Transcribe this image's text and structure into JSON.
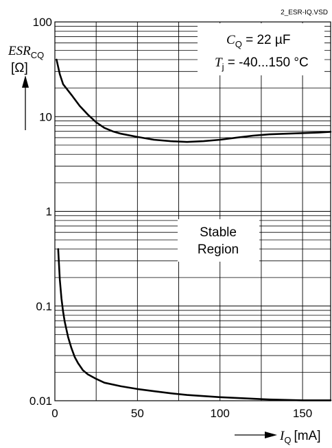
{
  "file_name": "2_ESR-IQ.VSD",
  "chart_data": {
    "type": "line",
    "log_y": true,
    "xlim": [
      0,
      167
    ],
    "ylim": [
      0.01,
      100
    ],
    "x_ticks": [
      "0",
      "50",
      "100",
      "150"
    ],
    "y_ticks": [
      "0.01",
      "0.1",
      "1",
      "10",
      "100"
    ],
    "grid": true,
    "ylabel": {
      "main": "ESR",
      "sub": "CQ",
      "unit": "[Ω]"
    },
    "xlabel": {
      "main": "I",
      "sub": "Q",
      "unit": "[mA]"
    },
    "annotation": {
      "cq_label": "C",
      "cq_sub": "Q",
      "cq_value": " = 22 µF",
      "tj_label": "T",
      "tj_sub": "j",
      "tj_value": " = -40...150 °C"
    },
    "region_label": [
      "Stable",
      "Region"
    ],
    "series": [
      {
        "role": "upper-boundary",
        "x": [
          1,
          3,
          5,
          10,
          15,
          20,
          25,
          30,
          35,
          40,
          50,
          60,
          70,
          80,
          90,
          100,
          110,
          120,
          130,
          140,
          150,
          160,
          167
        ],
        "y": [
          40,
          28,
          22,
          17,
          13,
          10.5,
          8.7,
          7.6,
          7.0,
          6.6,
          6.1,
          5.7,
          5.5,
          5.4,
          5.5,
          5.7,
          6.0,
          6.3,
          6.5,
          6.6,
          6.7,
          6.8,
          6.9
        ]
      },
      {
        "role": "lower-boundary",
        "x": [
          2,
          3,
          4,
          5,
          6,
          8,
          10,
          12,
          14,
          17,
          20,
          25,
          30,
          40,
          50,
          60,
          70,
          80,
          90,
          100,
          110,
          120,
          130,
          140,
          150,
          160,
          167
        ],
        "y": [
          0.4,
          0.19,
          0.12,
          0.087,
          0.068,
          0.047,
          0.036,
          0.029,
          0.025,
          0.021,
          0.019,
          0.017,
          0.0155,
          0.0142,
          0.0133,
          0.0126,
          0.012,
          0.0115,
          0.0112,
          0.0109,
          0.0107,
          0.0105,
          0.0103,
          0.0102,
          0.0101,
          0.0101,
          0.0101
        ]
      }
    ]
  }
}
